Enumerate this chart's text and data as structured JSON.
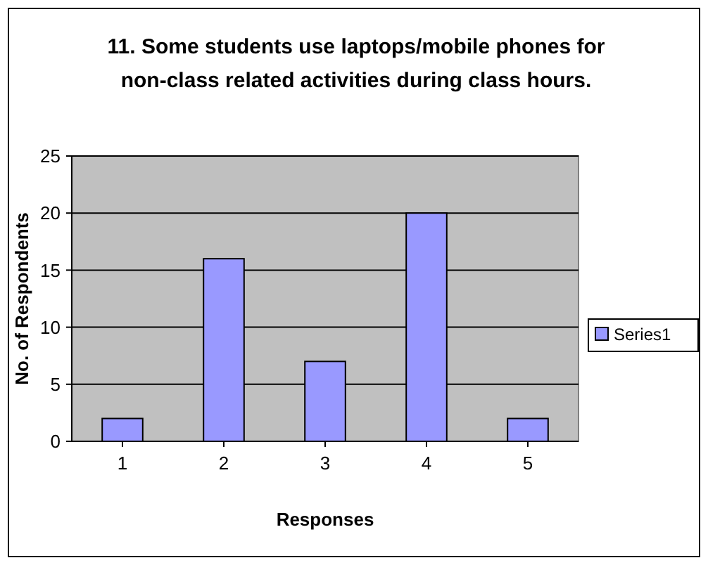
{
  "chart_data": {
    "type": "bar",
    "title": "11. Some students use laptops/mobile phones for non-class related activities during class hours.",
    "xlabel": "Responses",
    "ylabel": "No. of Respondents",
    "categories": [
      "1",
      "2",
      "3",
      "4",
      "5"
    ],
    "series": [
      {
        "name": "Series1",
        "color": "#9999ff",
        "values": [
          2,
          16,
          7,
          20,
          2
        ]
      }
    ],
    "ylim": [
      0,
      25
    ],
    "yticks": [
      0,
      5,
      10,
      15,
      20,
      25
    ],
    "grid": "y",
    "legend": "right"
  }
}
